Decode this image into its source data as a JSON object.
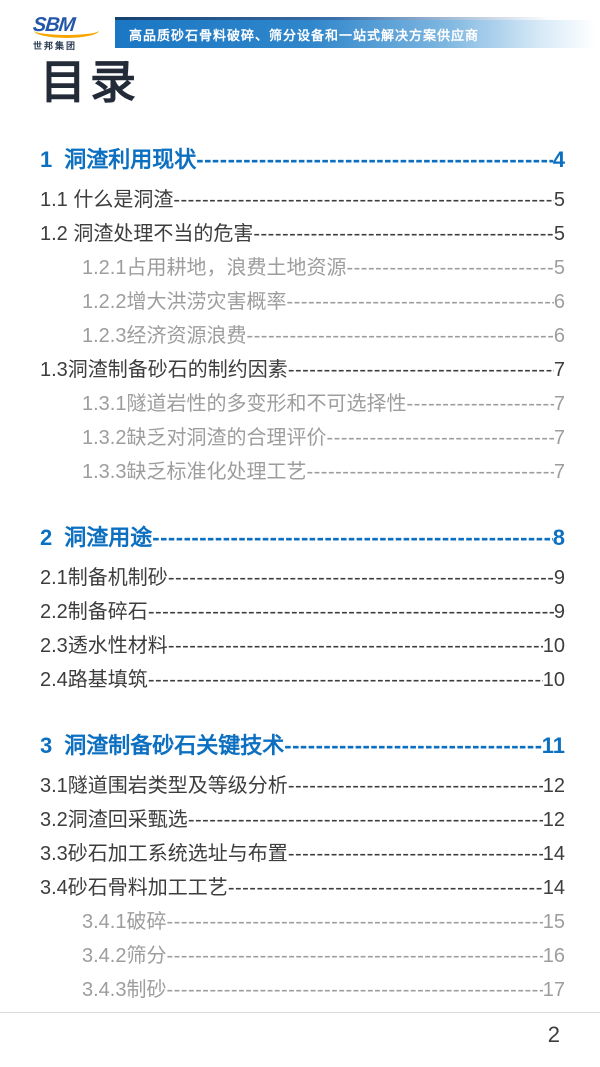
{
  "header": {
    "logo": {
      "brand": "SBM",
      "subtext": "世邦集团"
    },
    "banner_text": "高品质砂石骨料破碎、筛分设备和一站式解决方案供应商"
  },
  "page_title": "目录",
  "colors": {
    "accent_blue": "#0c6fc0",
    "text_dark": "#3d3d3d",
    "text_gray": "#9d9d9d",
    "banner_blue": "#1b77c3",
    "logo_blue": "#2356a8",
    "logo_yellow": "#f7a600"
  },
  "toc": {
    "leader_char": "-",
    "sections": [
      {
        "number": "1",
        "title": "洞渣利用现状",
        "page": "4",
        "items": [
          {
            "label": "1.1 什么是洞渣",
            "page": "5",
            "sub": false
          },
          {
            "label": "1.2 洞渣处理不当的危害",
            "page": "5",
            "sub": false
          },
          {
            "label": "1.2.1占用耕地，浪费土地资源",
            "page": "5",
            "sub": true
          },
          {
            "label": "1.2.2增大洪涝灾害概率",
            "page": "6",
            "sub": true
          },
          {
            "label": "1.2.3经济资源浪费",
            "page": "6",
            "sub": true
          },
          {
            "label": "1.3洞渣制备砂石的制约因素",
            "page": "7",
            "sub": false
          },
          {
            "label": "1.3.1隧道岩性的多变形和不可选择性",
            "page": "7",
            "sub": true
          },
          {
            "label": "1.3.2缺乏对洞渣的合理评价",
            "page": "7",
            "sub": true
          },
          {
            "label": "1.3.3缺乏标准化处理工艺",
            "page": "7",
            "sub": true
          }
        ]
      },
      {
        "number": "2",
        "title": "洞渣用途",
        "page": "8",
        "items": [
          {
            "label": "2.1制备机制砂",
            "page": "9",
            "sub": false
          },
          {
            "label": "2.2制备碎石",
            "page": "9",
            "sub": false
          },
          {
            "label": "2.3透水性材料",
            "page": "10",
            "sub": false
          },
          {
            "label": "2.4路基填筑",
            "page": "10",
            "sub": false
          }
        ]
      },
      {
        "number": "3",
        "title": "洞渣制备砂石关键技术",
        "page": "11",
        "items": [
          {
            "label": "3.1隧道围岩类型及等级分析",
            "page": "12",
            "sub": false
          },
          {
            "label": "3.2洞渣回采甄选",
            "page": "12",
            "sub": false
          },
          {
            "label": "3.3砂石加工系统选址与布置",
            "page": "14",
            "sub": false
          },
          {
            "label": "3.4砂石骨料加工工艺",
            "page": "14",
            "sub": false
          },
          {
            "label": "3.4.1破碎",
            "page": "15",
            "sub": true
          },
          {
            "label": "3.4.2筛分",
            "page": "16",
            "sub": true
          },
          {
            "label": "3.4.3制砂",
            "page": "17",
            "sub": true
          }
        ]
      }
    ]
  },
  "footer": {
    "page_number": "2"
  }
}
